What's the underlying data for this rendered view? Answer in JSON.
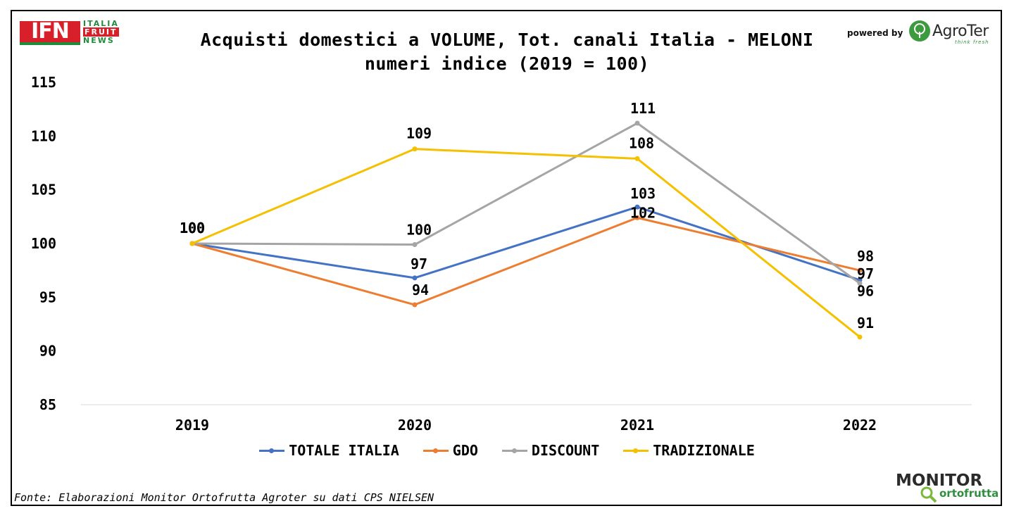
{
  "header": {
    "title_line1": "Acquisti domestici a VOLUME, Tot. canali Italia - MELONI",
    "title_line2": "numeri indice (2019 = 100)",
    "ifn_logo": {
      "mark": "IFN",
      "line1": "ITALIA",
      "line2": "FRUIT",
      "line3": "NEWS"
    },
    "powered_by": "powered by",
    "agroter_logo": {
      "name": "AgroTer",
      "tagline": "think fresh",
      "icon": "tree-icon"
    }
  },
  "footer": {
    "source": "Fonte: Elaborazioni Monitor Ortofrutta Agroter su dati CPS NIELSEN",
    "monitor_logo": {
      "line1": "MONITOR",
      "line2": "ortofrutta"
    }
  },
  "colors": {
    "totale": "#4472c4",
    "gdo": "#ed7d31",
    "discount": "#a5a5a5",
    "tradizionale": "#f5c000",
    "gridline": "#d9d9d9"
  },
  "chart_data": {
    "type": "line",
    "title": "Acquisti domestici a VOLUME, Tot. canali Italia - MELONI numeri indice (2019 = 100)",
    "categories": [
      "2019",
      "2020",
      "2021",
      "2022"
    ],
    "y_ticks": [
      "85",
      "90",
      "95",
      "100",
      "105",
      "110",
      "115"
    ],
    "ylim": [
      85,
      115
    ],
    "legend_position": "bottom",
    "series": [
      {
        "name": "TOTALE ITALIA",
        "color_key": "totale",
        "values": [
          100,
          96.8,
          103.4,
          96.6
        ],
        "labels": [
          "100",
          "97",
          "103",
          "97"
        ]
      },
      {
        "name": "GDO",
        "color_key": "gdo",
        "values": [
          100,
          94.3,
          102.4,
          97.5
        ],
        "labels": [
          "100",
          "94",
          "102",
          "98"
        ]
      },
      {
        "name": "DISCOUNT",
        "color_key": "discount",
        "values": [
          100,
          99.9,
          111.2,
          96.3
        ],
        "labels": [
          "100",
          "100",
          "111",
          "96"
        ]
      },
      {
        "name": "TRADIZIONALE",
        "color_key": "tradizionale",
        "values": [
          100,
          108.8,
          107.9,
          91.3
        ],
        "labels": [
          "100",
          "109",
          "108",
          "91"
        ]
      }
    ]
  }
}
